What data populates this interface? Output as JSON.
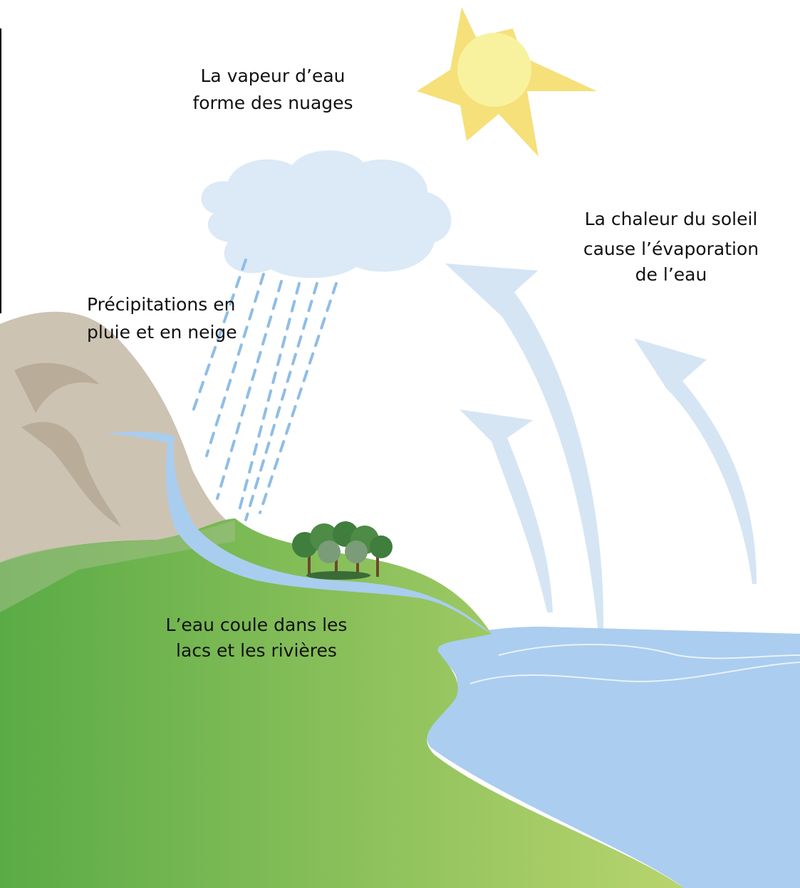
{
  "clouds": {
    "lines": [
      "La vapeur d’eau",
      "forme des nuages"
    ]
  },
  "evaporation": {
    "lines": [
      "La chaleur du soleil",
      "cause l’évaporation",
      "de l’eau"
    ]
  },
  "precipitation": {
    "lines": [
      "Précipitations en",
      "pluie et en neige"
    ]
  },
  "collection": {
    "lines": [
      "L’eau coule dans les",
      "lacs et les rivières"
    ]
  }
}
